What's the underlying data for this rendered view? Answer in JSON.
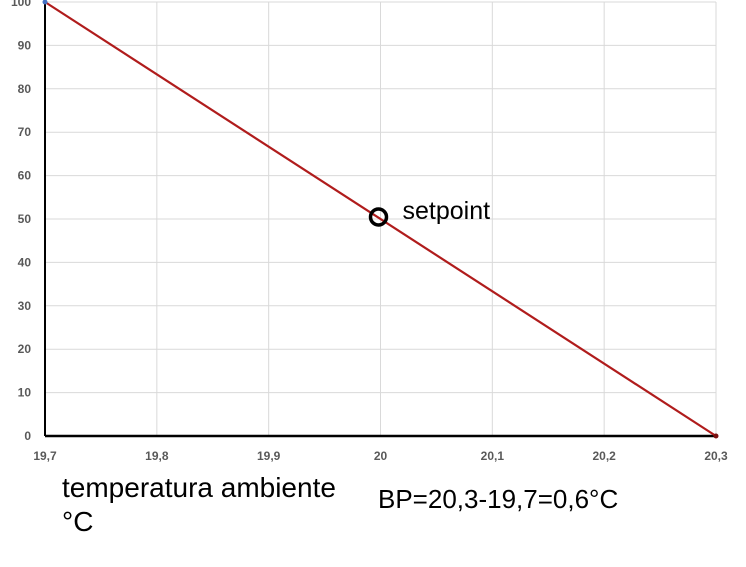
{
  "chart_data": {
    "type": "line",
    "xlabel": "temperatura ambiente °C",
    "ylabel": "",
    "title": "",
    "x_ticks": [
      "19,7",
      "19,8",
      "19,9",
      "20",
      "20,1",
      "20,2",
      "20,3"
    ],
    "y_ticks": [
      "0",
      "10",
      "20",
      "30",
      "40",
      "50",
      "60",
      "70",
      "80",
      "90",
      "100"
    ],
    "xlim": [
      19.7,
      20.3
    ],
    "ylim": [
      0,
      100
    ],
    "grid": true,
    "series": [
      {
        "x": [
          19.7,
          20.3
        ],
        "y": [
          100,
          0
        ],
        "color": "#b01c1c"
      }
    ],
    "annotations": [
      {
        "x": 20.0,
        "y": 50,
        "text": "setpoint"
      }
    ],
    "note": "BP=20,3-19,7=0,6°C"
  }
}
